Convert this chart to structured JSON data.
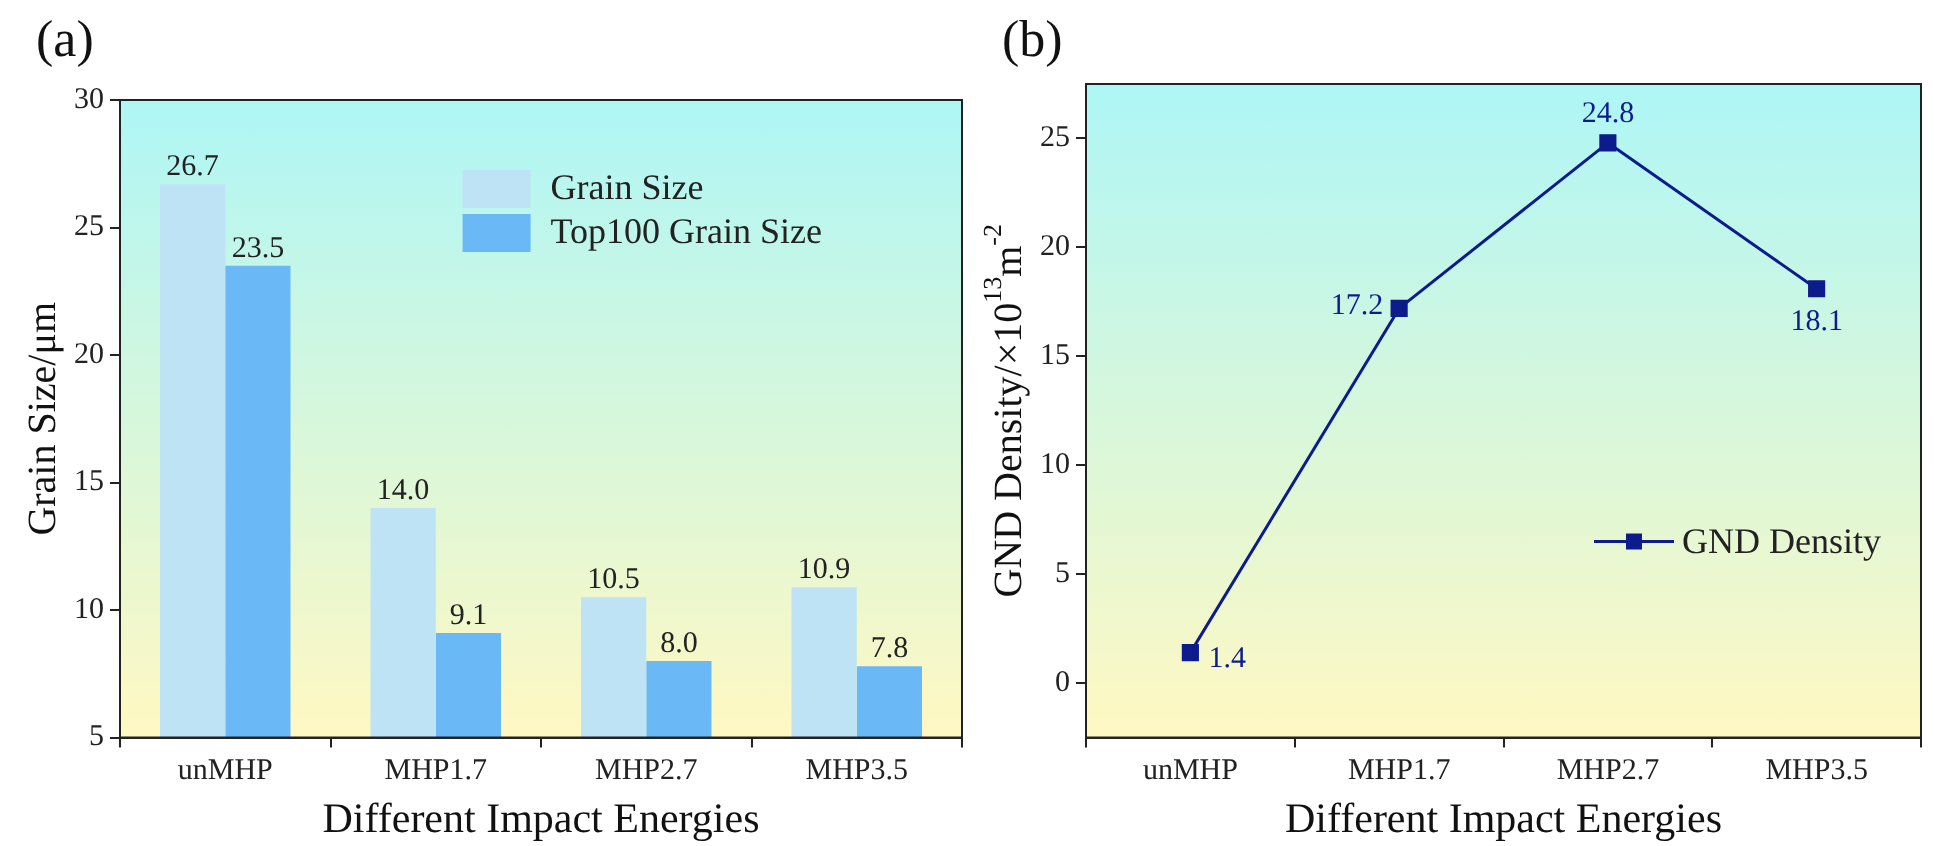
{
  "chart_data": [
    {
      "type": "bar",
      "title": "(a)",
      "xlabel": "Different Impact Energies",
      "ylabel": "Grain Size/μm",
      "categories": [
        "unMHP",
        "MHP1.7",
        "MHP2.7",
        "MHP3.5"
      ],
      "series": [
        {
          "name": "Grain Size",
          "color": "#bde3f5",
          "values": [
            26.7,
            14.0,
            10.5,
            10.9
          ],
          "value_labels": [
            "26.7",
            "14.0",
            "10.5",
            "10.9"
          ]
        },
        {
          "name": "Top100 Grain Size",
          "color": "#6bb8f7",
          "values": [
            23.5,
            9.1,
            8.0,
            7.8
          ],
          "value_labels": [
            "23.5",
            "9.1",
            "8.0",
            "7.8"
          ]
        }
      ],
      "ylim": [
        5,
        30
      ],
      "yticks": [
        5,
        10,
        15,
        20,
        25,
        30
      ],
      "grid": false,
      "legend": "top right"
    },
    {
      "type": "line",
      "title": "(b)",
      "xlabel": "Different Impact Energies",
      "ylabel": "GND Density/×10$^{13}$m$^{-2}$",
      "categories": [
        "unMHP",
        "MHP1.7",
        "MHP2.7",
        "MHP3.5"
      ],
      "series": [
        {
          "name": "GND Density",
          "color": "#0d1b8c",
          "values": [
            1.4,
            17.2,
            24.8,
            18.1
          ]
        }
      ],
      "ylim": [
        -2.5,
        27.5
      ],
      "yticks": [
        0,
        5,
        10,
        15,
        20,
        25
      ],
      "grid": false,
      "legend": "right",
      "data_labels": true,
      "marker": "square",
      "line_style": "solid"
    }
  ]
}
